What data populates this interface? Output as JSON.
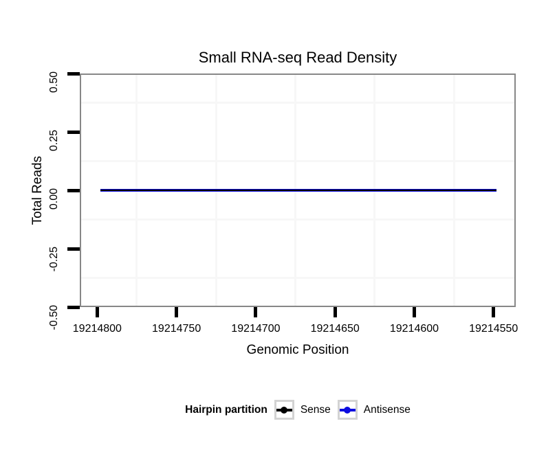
{
  "chart_data": {
    "type": "line",
    "title": "Small RNA-seq Read Density",
    "xlabel": "Genomic Position",
    "ylabel": "Total Reads",
    "x_axis": {
      "range": [
        19214811,
        19214536
      ],
      "reversed": true,
      "ticks": [
        19214800,
        19214750,
        19214700,
        19214650,
        19214600,
        19214550
      ],
      "tick_labels": [
        "19214800",
        "19214750",
        "19214700",
        "19214650",
        "19214600",
        "19214550"
      ]
    },
    "y_axis": {
      "range": [
        -0.5,
        0.5
      ],
      "ticks": [
        0.5,
        0.25,
        0,
        -0.25,
        -0.5
      ],
      "tick_labels": [
        "0.50",
        "0.25",
        "0.00",
        "-0.25",
        "-0.50"
      ]
    },
    "grid": {
      "major": false,
      "minor": true,
      "minor_color": "#f7f7f7"
    },
    "series": [
      {
        "name": "Sense",
        "color": "#000000",
        "linewidth": 2,
        "x": [
          19214798,
          19214548
        ],
        "y": [
          0,
          0
        ]
      },
      {
        "name": "Antisense",
        "color": "#0d0de0",
        "linewidth": 4,
        "x": [
          19214798,
          19214548
        ],
        "y": [
          0,
          0
        ]
      }
    ],
    "legend": {
      "title": "Hairpin partition",
      "position": "bottom",
      "entries": [
        {
          "label": "Sense",
          "color": "#000000"
        },
        {
          "label": "Antisense",
          "color": "#0d0de0"
        }
      ]
    }
  },
  "colors": {
    "panel_border": "#878787",
    "tick": "#000000",
    "minor_grid": "#f7f7f7",
    "legend_key_border": "#d3d3d3"
  }
}
